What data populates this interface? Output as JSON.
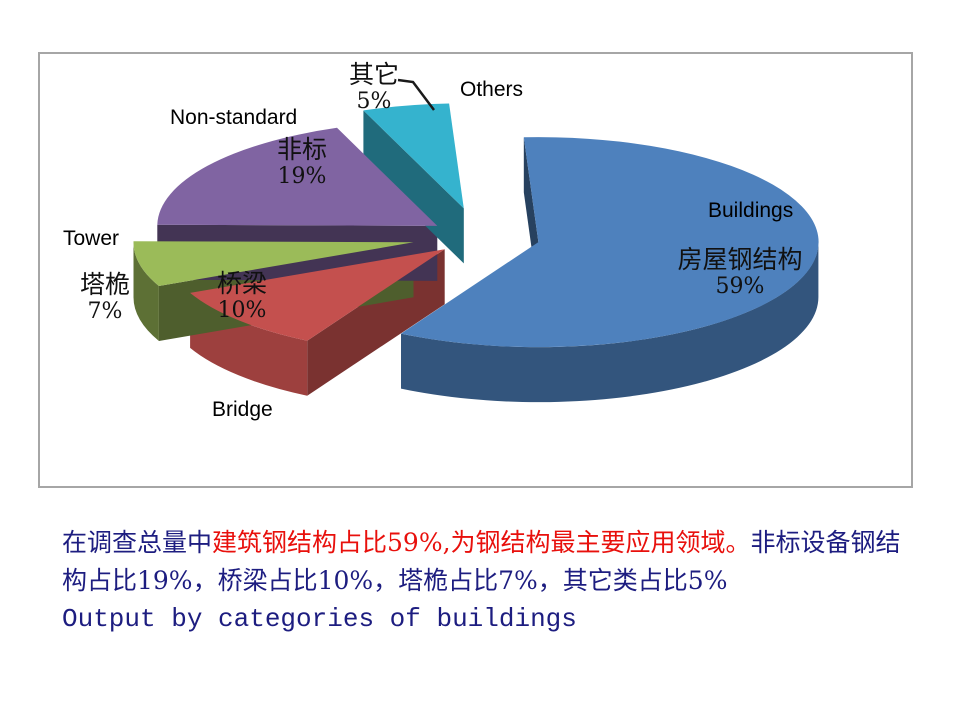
{
  "chart_data": {
    "type": "pie",
    "variant": "3d-exploded",
    "title": "",
    "legend": "none",
    "unit": "%",
    "clockwise_from_top": true,
    "categories": [
      "房屋钢结构 Buildings",
      "桥梁 Bridge",
      "塔桅 Tower",
      "非标 Non-standard",
      "其它 Others"
    ],
    "values": [
      59,
      10,
      7,
      19,
      5
    ],
    "colors": [
      "#4E81BD",
      "#C4504E",
      "#9BBB59",
      "#8064A2",
      "#35B3CE"
    ],
    "slice_labels": [
      {
        "en": "Buildings",
        "zh": "房屋钢结构",
        "pct": "59%"
      },
      {
        "en": "Bridge",
        "zh": "桥梁",
        "pct": "10%"
      },
      {
        "en": "Tower",
        "zh": "塔桅",
        "pct": "7%"
      },
      {
        "en": "Non-standard",
        "zh": "非标",
        "pct": "19%"
      },
      {
        "en": "Others",
        "zh": "其它",
        "pct": "5%"
      }
    ]
  },
  "caption": {
    "segments": [
      {
        "text": "在调查总量中",
        "hex": "#1D1D80"
      },
      {
        "text": "建筑钢结构占比59%,为钢结构最主要应用领域。",
        "hex": "#E8100C"
      },
      {
        "text": "非标设备钢结构占比19%，桥梁占比10%，塔桅占比7%，其它类占比5%",
        "hex": "#1D1D80"
      }
    ],
    "footer": "Output by categories of buildings",
    "footer_hex": "#1D1D80"
  }
}
